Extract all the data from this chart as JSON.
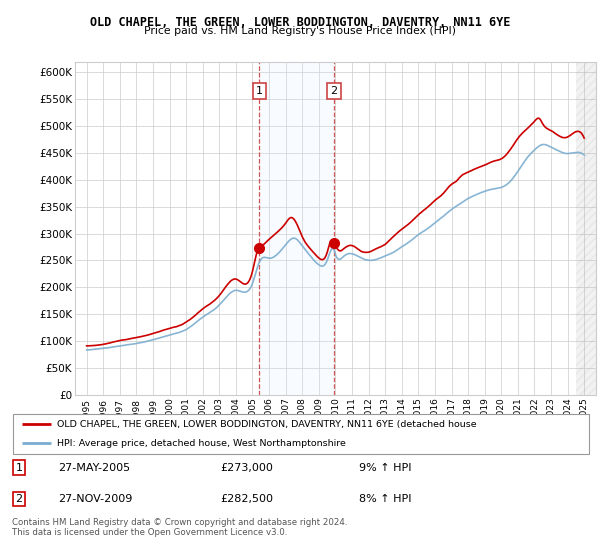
{
  "title1": "OLD CHAPEL, THE GREEN, LOWER BODDINGTON, DAVENTRY, NN11 6YE",
  "title2": "Price paid vs. HM Land Registry's House Price Index (HPI)",
  "ylabel_ticks": [
    "£0",
    "£50K",
    "£100K",
    "£150K",
    "£200K",
    "£250K",
    "£300K",
    "£350K",
    "£400K",
    "£450K",
    "£500K",
    "£550K",
    "£600K"
  ],
  "ytick_values": [
    0,
    50000,
    100000,
    150000,
    200000,
    250000,
    300000,
    350000,
    400000,
    450000,
    500000,
    550000,
    600000
  ],
  "legend_red": "OLD CHAPEL, THE GREEN, LOWER BODDINGTON, DAVENTRY, NN11 6YE (detached house",
  "legend_blue": "HPI: Average price, detached house, West Northamptonshire",
  "marker1_date": "27-MAY-2005",
  "marker1_price": "£273,000",
  "marker1_label": "9% ↑ HPI",
  "marker2_date": "27-NOV-2009",
  "marker2_price": "£282,500",
  "marker2_label": "8% ↑ HPI",
  "footnote": "Contains HM Land Registry data © Crown copyright and database right 2024.\nThis data is licensed under the Open Government Licence v3.0.",
  "red_color": "#cc0000",
  "blue_color": "#7aadcf",
  "shade_color": "#ddeeff",
  "vline_color": "#cc4444",
  "grid_color": "#cccccc",
  "background_color": "#ffffff",
  "sale1_x": 2005.42,
  "sale1_y": 273000,
  "sale2_x": 2009.92,
  "sale2_y": 282500,
  "xlim": [
    1994.3,
    2025.7
  ],
  "ylim": [
    0,
    620000
  ],
  "hatch_x_start": 2024.5,
  "hatch_x_end": 2025.7
}
